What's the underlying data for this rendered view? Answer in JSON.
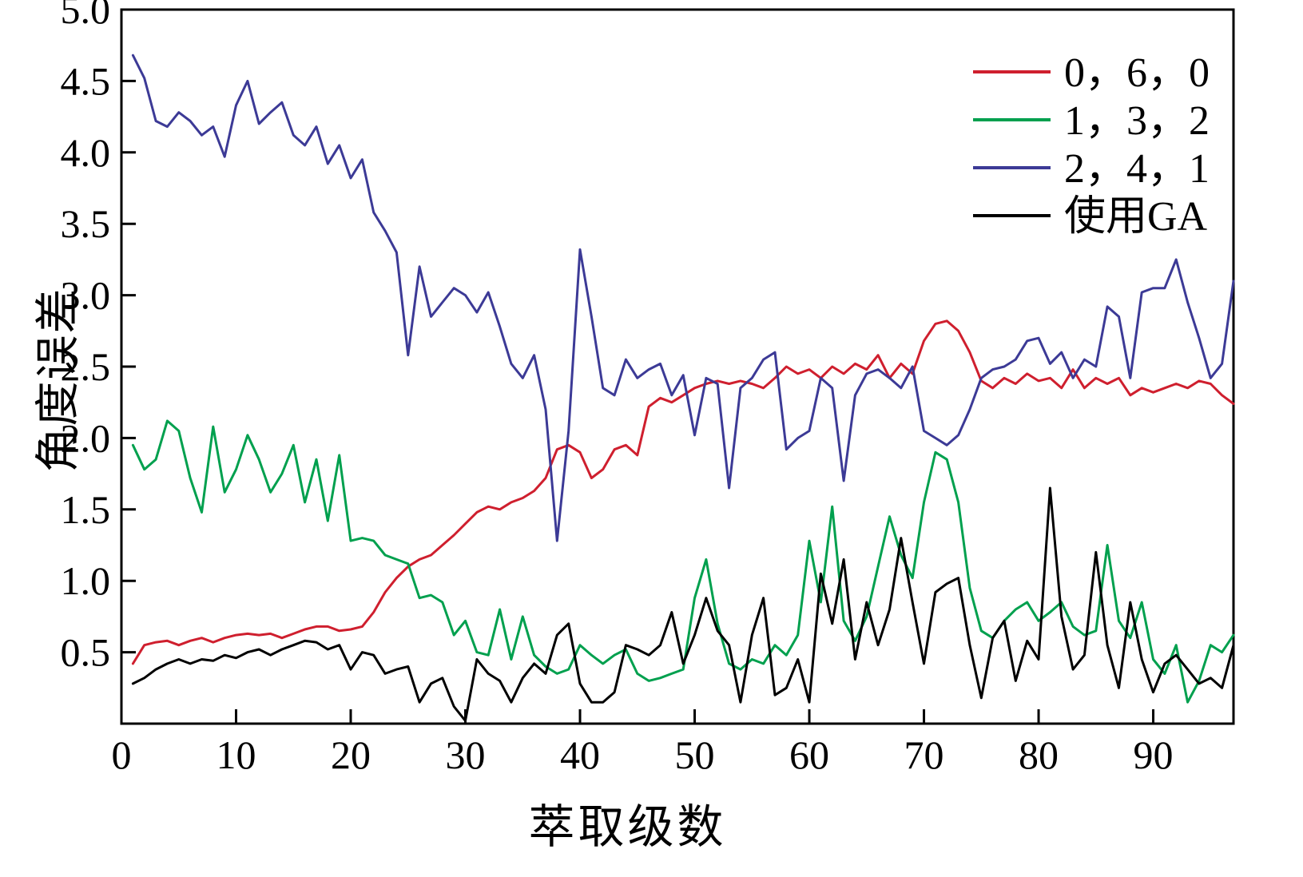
{
  "chart_data": {
    "type": "line",
    "title": "",
    "xlabel": "萃取级数",
    "ylabel": "角度误差",
    "xlim": [
      0,
      97
    ],
    "ylim": [
      0,
      5
    ],
    "grid": false,
    "legend_position": "top-right",
    "x_ticks": [
      0,
      10,
      20,
      30,
      40,
      50,
      60,
      70,
      80,
      90
    ],
    "y_ticks": [
      0.5,
      1.0,
      1.5,
      2.0,
      2.5,
      3.0,
      3.5,
      4.0,
      4.5,
      5.0
    ],
    "x": [
      1,
      2,
      3,
      4,
      5,
      6,
      7,
      8,
      9,
      10,
      11,
      12,
      13,
      14,
      15,
      16,
      17,
      18,
      19,
      20,
      21,
      22,
      23,
      24,
      25,
      26,
      27,
      28,
      29,
      30,
      31,
      32,
      33,
      34,
      35,
      36,
      37,
      38,
      39,
      40,
      41,
      42,
      43,
      44,
      45,
      46,
      47,
      48,
      49,
      50,
      51,
      52,
      53,
      54,
      55,
      56,
      57,
      58,
      59,
      60,
      61,
      62,
      63,
      64,
      65,
      66,
      67,
      68,
      69,
      70,
      71,
      72,
      73,
      74,
      75,
      76,
      77,
      78,
      79,
      80,
      81,
      82,
      83,
      84,
      85,
      86,
      87,
      88,
      89,
      90,
      91,
      92,
      93,
      94,
      95,
      96,
      97
    ],
    "series": [
      {
        "name": "0，6，0",
        "color": "#cf1f2e",
        "values": [
          0.42,
          0.55,
          0.57,
          0.58,
          0.55,
          0.58,
          0.6,
          0.57,
          0.6,
          0.62,
          0.63,
          0.62,
          0.63,
          0.6,
          0.63,
          0.66,
          0.68,
          0.68,
          0.65,
          0.66,
          0.68,
          0.78,
          0.92,
          1.02,
          1.1,
          1.15,
          1.18,
          1.25,
          1.32,
          1.4,
          1.48,
          1.52,
          1.5,
          1.55,
          1.58,
          1.63,
          1.72,
          1.92,
          1.95,
          1.9,
          1.72,
          1.78,
          1.92,
          1.95,
          1.88,
          2.22,
          2.28,
          2.25,
          2.3,
          2.35,
          2.38,
          2.4,
          2.38,
          2.4,
          2.38,
          2.35,
          2.42,
          2.5,
          2.45,
          2.48,
          2.42,
          2.5,
          2.45,
          2.52,
          2.48,
          2.58,
          2.42,
          2.52,
          2.45,
          2.68,
          2.8,
          2.82,
          2.75,
          2.6,
          2.4,
          2.35,
          2.42,
          2.38,
          2.45,
          2.4,
          2.42,
          2.35,
          2.48,
          2.35,
          2.42,
          2.38,
          2.42,
          2.3,
          2.35,
          2.32,
          2.35,
          2.38,
          2.35,
          2.4,
          2.38,
          2.3,
          2.24
        ]
      },
      {
        "name": "1，3，2",
        "color": "#00a04e",
        "values": [
          1.95,
          1.78,
          1.85,
          2.12,
          2.05,
          1.72,
          1.48,
          2.08,
          1.62,
          1.78,
          2.02,
          1.85,
          1.62,
          1.75,
          1.95,
          1.55,
          1.85,
          1.42,
          1.88,
          1.28,
          1.3,
          1.28,
          1.18,
          1.15,
          1.12,
          0.88,
          0.9,
          0.85,
          0.62,
          0.72,
          0.5,
          0.48,
          0.8,
          0.45,
          0.75,
          0.48,
          0.4,
          0.35,
          0.38,
          0.55,
          0.48,
          0.42,
          0.48,
          0.52,
          0.35,
          0.3,
          0.32,
          0.35,
          0.38,
          0.88,
          1.15,
          0.7,
          0.42,
          0.38,
          0.45,
          0.42,
          0.55,
          0.48,
          0.62,
          1.28,
          0.85,
          1.52,
          0.72,
          0.58,
          0.75,
          1.1,
          1.45,
          1.18,
          1.02,
          1.55,
          1.9,
          1.85,
          1.55,
          0.95,
          0.65,
          0.6,
          0.72,
          0.8,
          0.85,
          0.72,
          0.78,
          0.85,
          0.68,
          0.62,
          0.65,
          1.25,
          0.72,
          0.6,
          0.85,
          0.45,
          0.35,
          0.55,
          0.15,
          0.3,
          0.55,
          0.5,
          0.62
        ]
      },
      {
        "name": "2，4，1",
        "color": "#3c3a96",
        "values": [
          4.68,
          4.52,
          4.22,
          4.18,
          4.28,
          4.22,
          4.12,
          4.18,
          3.97,
          4.33,
          4.5,
          4.2,
          4.28,
          4.35,
          4.12,
          4.05,
          4.18,
          3.92,
          4.05,
          3.82,
          3.95,
          3.58,
          3.45,
          3.3,
          2.58,
          3.2,
          2.85,
          2.95,
          3.05,
          3.0,
          2.88,
          3.02,
          2.78,
          2.52,
          2.42,
          2.58,
          2.2,
          1.28,
          2.05,
          3.32,
          2.85,
          2.35,
          2.3,
          2.55,
          2.42,
          2.48,
          2.52,
          2.3,
          2.44,
          2.02,
          2.42,
          2.38,
          1.65,
          2.35,
          2.42,
          2.55,
          2.6,
          1.92,
          2.0,
          2.05,
          2.42,
          2.35,
          1.7,
          2.3,
          2.45,
          2.48,
          2.42,
          2.35,
          2.5,
          2.05,
          2.0,
          1.95,
          2.02,
          2.2,
          2.42,
          2.48,
          2.5,
          2.55,
          2.68,
          2.7,
          2.52,
          2.6,
          2.42,
          2.55,
          2.5,
          2.92,
          2.85,
          2.42,
          3.02,
          3.05,
          3.05,
          3.25,
          2.95,
          2.7,
          2.42,
          2.52,
          3.1
        ]
      },
      {
        "name": "使用GA",
        "color": "#000000",
        "values": [
          0.28,
          0.32,
          0.38,
          0.42,
          0.45,
          0.42,
          0.45,
          0.44,
          0.48,
          0.46,
          0.5,
          0.52,
          0.48,
          0.52,
          0.55,
          0.58,
          0.57,
          0.52,
          0.55,
          0.38,
          0.5,
          0.48,
          0.35,
          0.38,
          0.4,
          0.15,
          0.28,
          0.32,
          0.12,
          0.02,
          0.45,
          0.35,
          0.3,
          0.15,
          0.32,
          0.42,
          0.35,
          0.62,
          0.7,
          0.28,
          0.15,
          0.15,
          0.22,
          0.55,
          0.52,
          0.48,
          0.55,
          0.78,
          0.42,
          0.62,
          0.88,
          0.65,
          0.55,
          0.15,
          0.62,
          0.88,
          0.2,
          0.25,
          0.45,
          0.15,
          1.05,
          0.7,
          1.15,
          0.45,
          0.85,
          0.55,
          0.8,
          1.3,
          0.85,
          0.42,
          0.92,
          0.98,
          1.02,
          0.55,
          0.18,
          0.6,
          0.72,
          0.3,
          0.58,
          0.45,
          1.65,
          0.75,
          0.38,
          0.48,
          1.2,
          0.55,
          0.25,
          0.85,
          0.45,
          0.22,
          0.42,
          0.48,
          0.38,
          0.28,
          0.32,
          0.25,
          0.55
        ]
      }
    ]
  }
}
